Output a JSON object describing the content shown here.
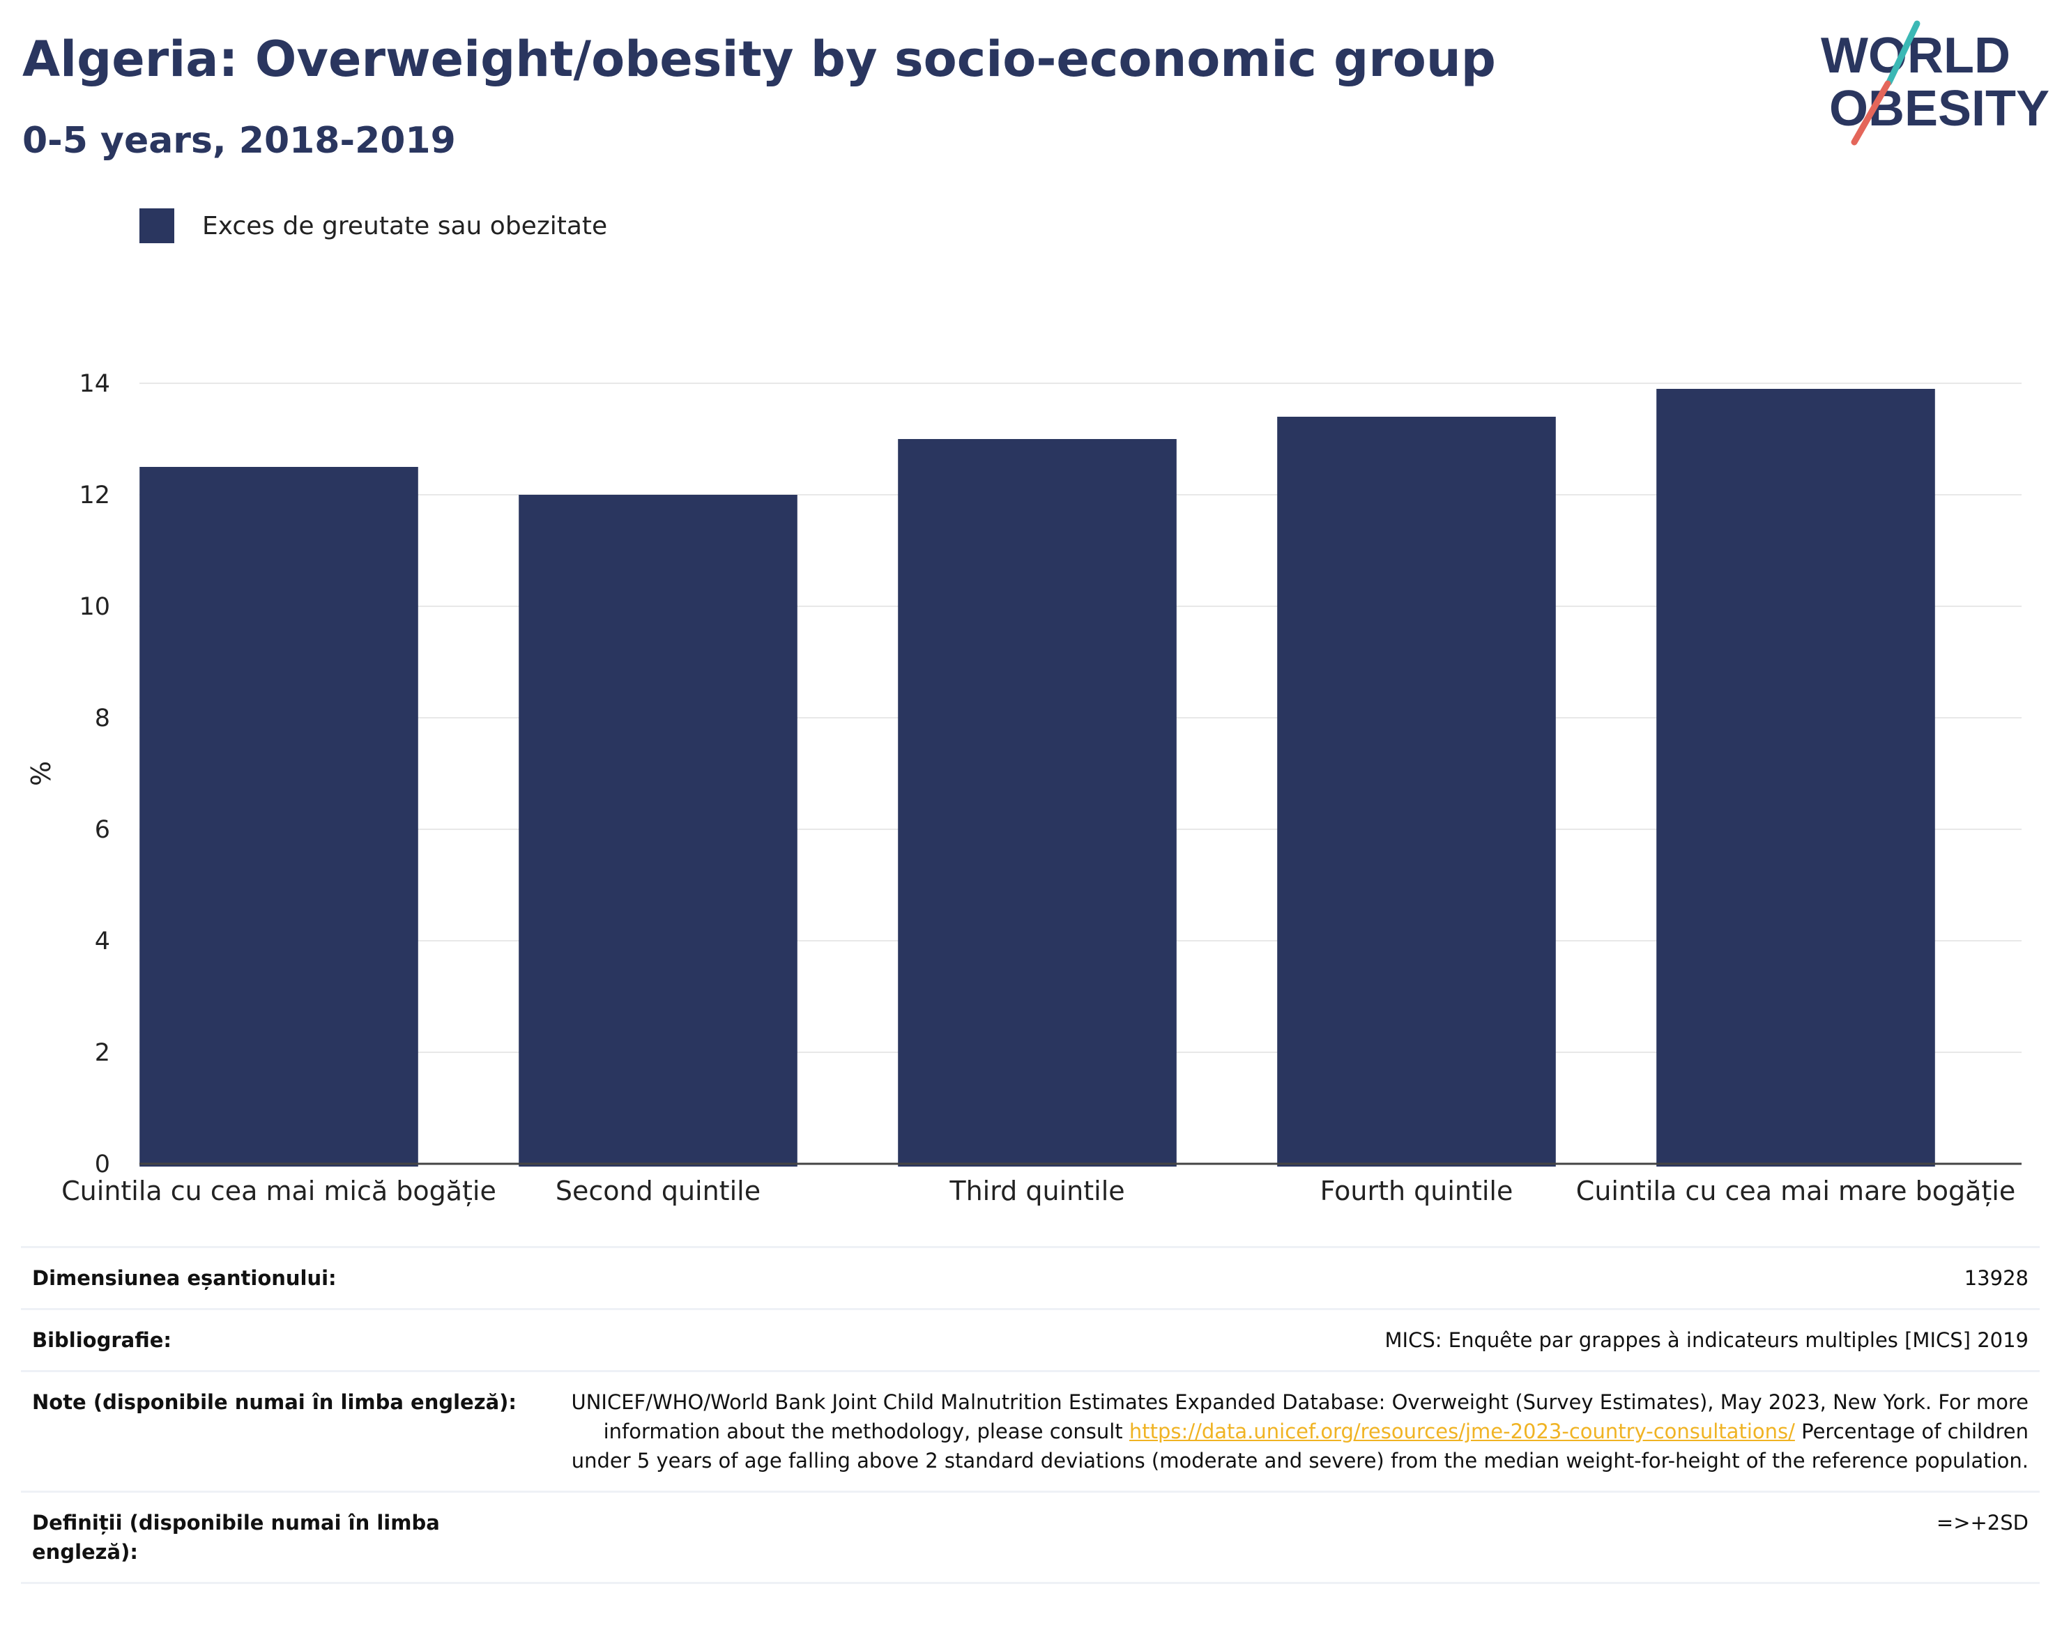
{
  "header": {
    "title": "Algeria: Overweight/obesity by socio-economic group",
    "subtitle": "0-5 years, 2018-2019"
  },
  "logo": {
    "line1": "WORLD",
    "line2": "OBESITY"
  },
  "colors": {
    "bar": "#2a365f",
    "title": "#2a365f",
    "logo_teal": "#3bb8b5",
    "logo_red": "#e4665a",
    "link": "#f0b323",
    "grid": "#e8e8e8"
  },
  "legend": {
    "label": "Exces de greutate sau obezitate"
  },
  "chart_data": {
    "type": "bar",
    "categories": [
      "Cuintila cu cea mai mică bogăție",
      "Second quintile",
      "Third quintile",
      "Fourth quintile",
      "Cuintila cu cea mai mare bogăție"
    ],
    "series": [
      {
        "name": "Exces de greutate sau obezitate",
        "values": [
          12.5,
          12.0,
          13.0,
          13.4,
          13.9
        ]
      }
    ],
    "ylabel": "%",
    "ylim": [
      0,
      14
    ],
    "yticks": [
      0,
      2,
      4,
      6,
      8,
      10,
      12,
      14
    ],
    "grid": true,
    "legend_position": "top-left"
  },
  "info": {
    "sample_label": "Dimensiunea eșantionului:",
    "sample_value": "13928",
    "biblio_label": "Bibliografie:",
    "biblio_value": "MICS: Enquête par grappes à indicateurs multiples [MICS] 2019",
    "notes_label": "Note (disponibile numai în limba engleză):",
    "notes_text1": "UNICEF/WHO/World Bank Joint Child Malnutrition Estimates Expanded Database: Overweight (Survey Estimates), May 2023, New York. For more information about the methodology, please consult ",
    "notes_link": "https://data.unicef.org/resources/jme-2023-country-consultations/",
    "notes_text2": " Percentage of children under 5 years of age falling above 2 standard deviations (moderate and severe) from the median weight-for-height of the reference population.",
    "defs_label": "Definiții (disponibile numai în limba engleză):",
    "defs_value": "=>+2SD"
  }
}
